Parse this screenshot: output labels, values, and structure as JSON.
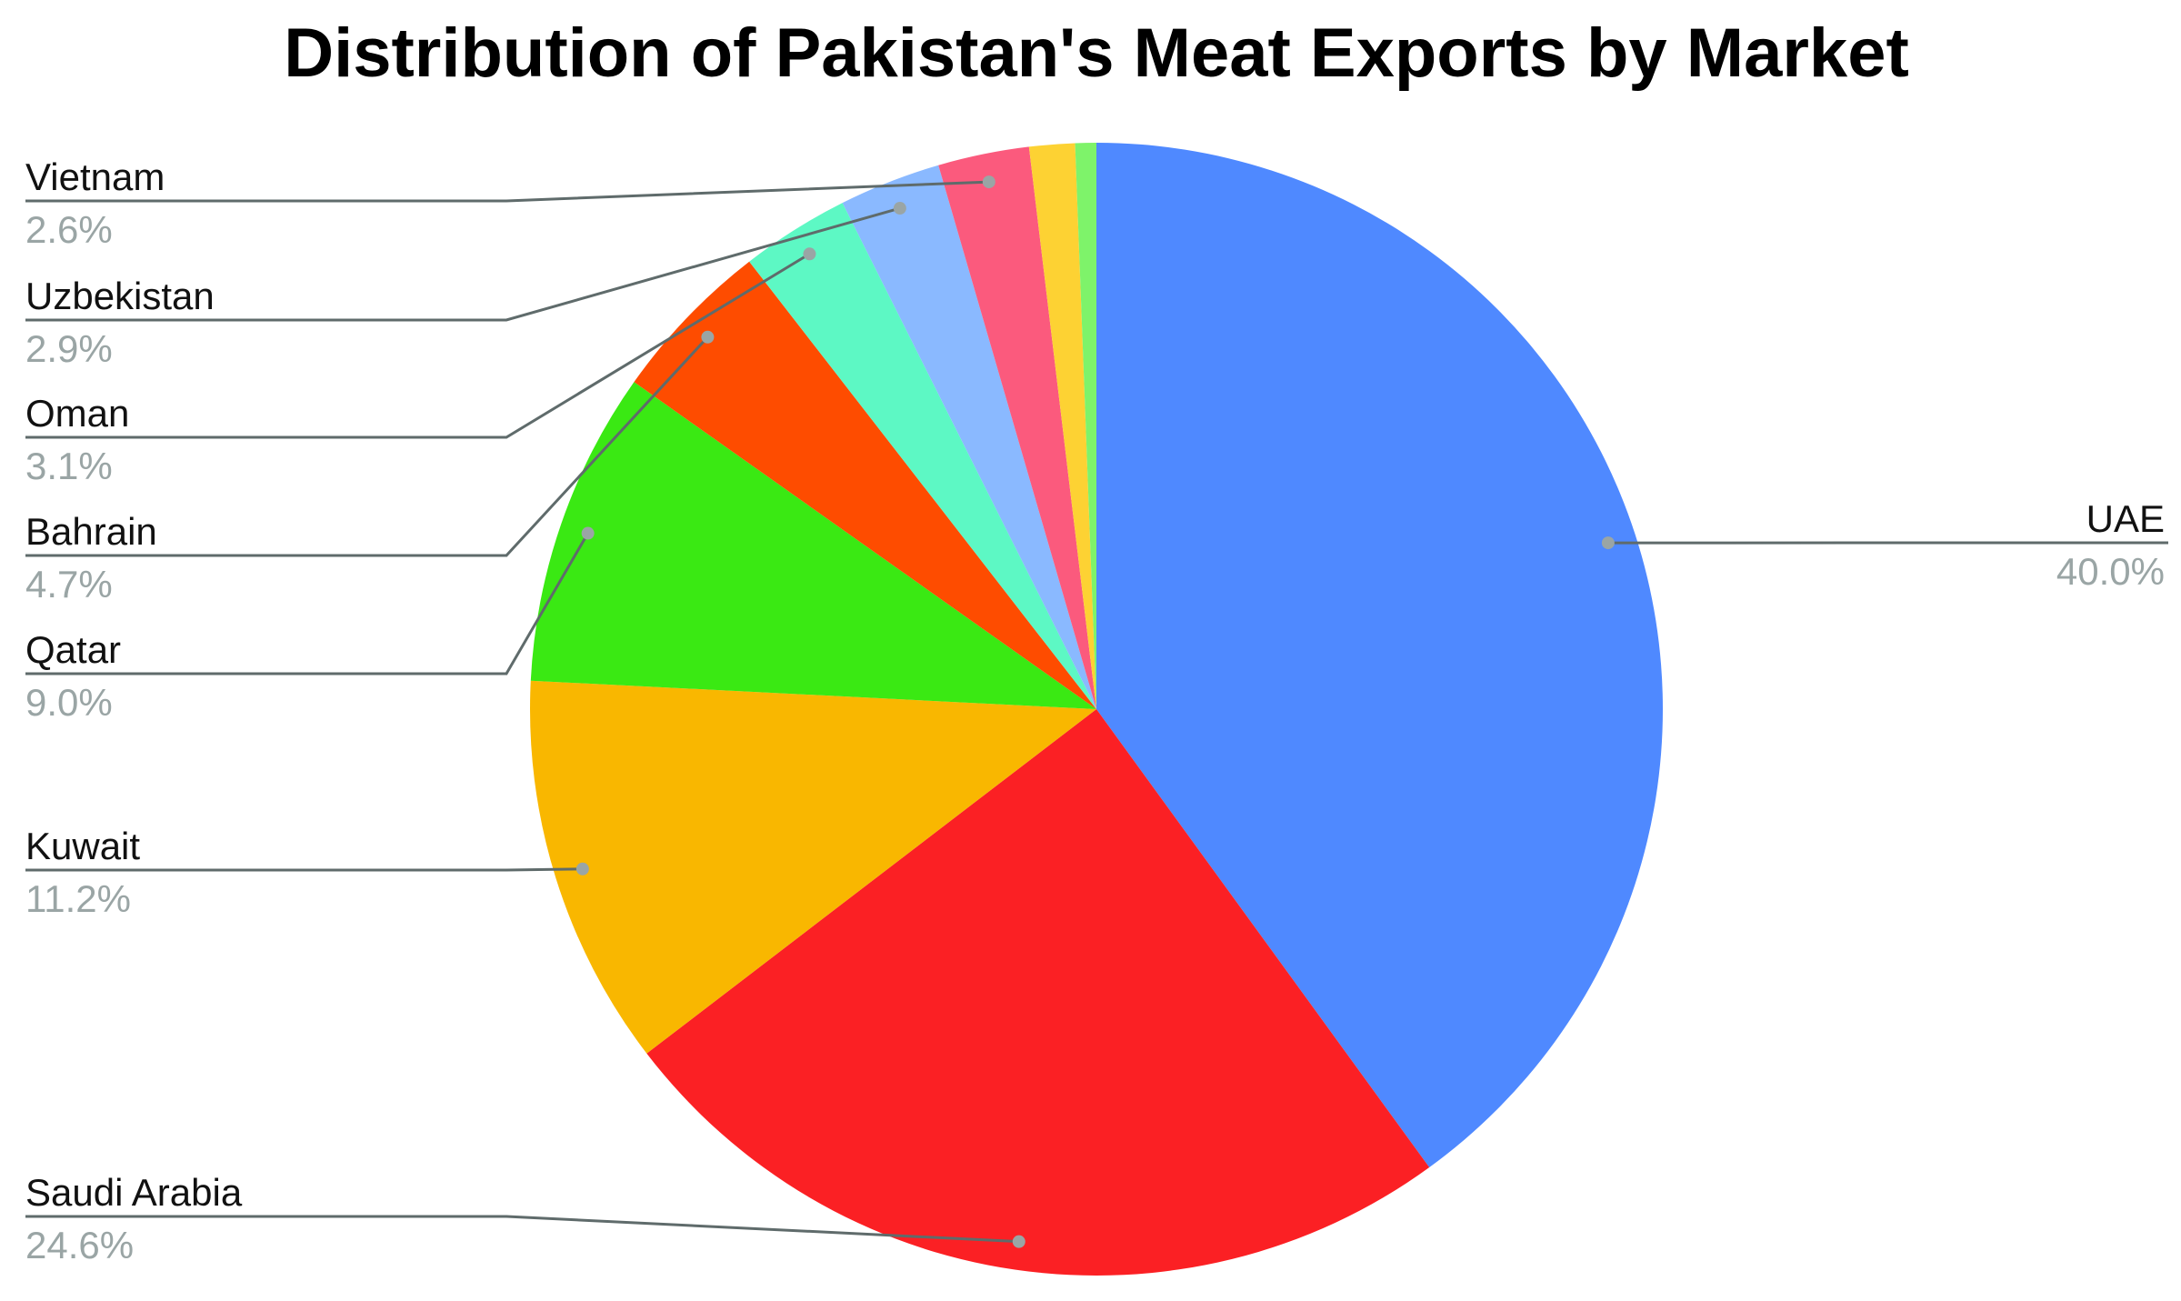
{
  "chart_data": {
    "type": "pie",
    "title": "Distribution of Pakistan's Meat Exports by Market",
    "categories": [
      "UAE",
      "Saudi Arabia",
      "Kuwait",
      "Qatar",
      "Bahrain",
      "Oman",
      "Uzbekistan",
      "Vietnam",
      null,
      null
    ],
    "values": [
      40.0,
      24.6,
      11.2,
      9.0,
      4.7,
      3.1,
      2.9,
      2.6,
      1.3,
      0.6
    ],
    "value_labels": [
      "40.0%",
      "24.6%",
      "11.2%",
      "9.0%",
      "4.7%",
      "3.1%",
      "2.9%",
      "2.6%",
      null,
      null
    ],
    "colors": [
      "#4f89ff",
      "#fb2024",
      "#f9b700",
      "#3ae913",
      "#fe4c00",
      "#5df8c4",
      "#8ab9ff",
      "#fb5a7d",
      "#fdd233",
      "#7ef36a"
    ]
  }
}
